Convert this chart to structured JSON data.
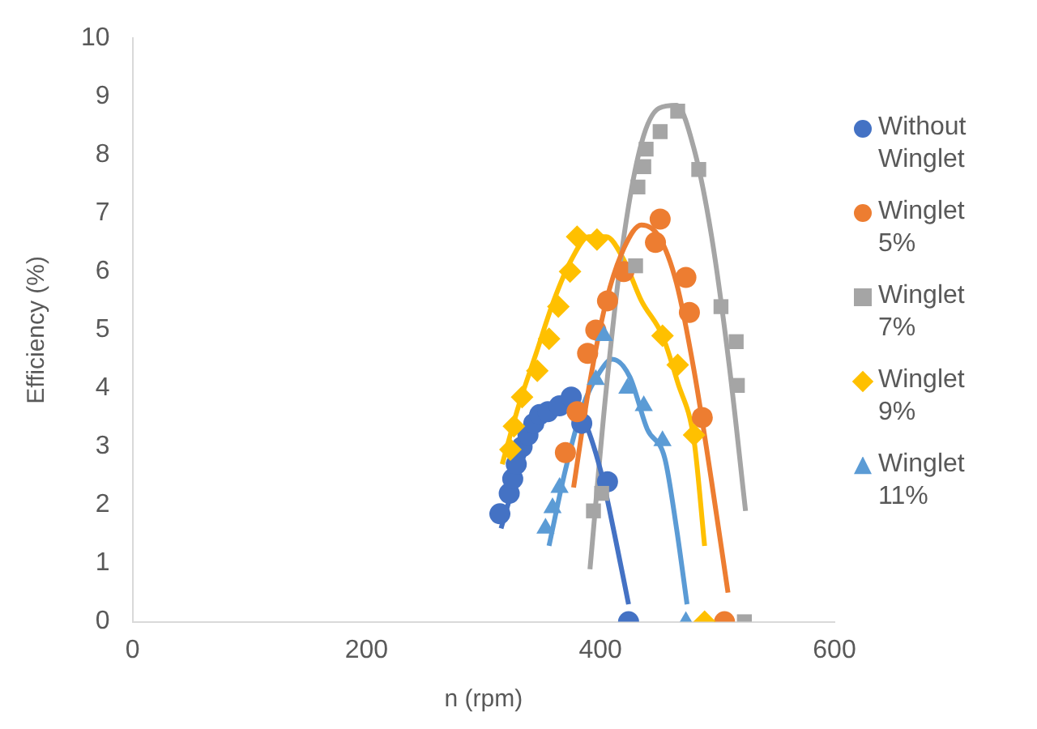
{
  "chart_data": {
    "type": "scatter",
    "xlabel": "n (rpm)",
    "ylabel": "Efficiency (%)",
    "xlim": [
      0,
      600
    ],
    "xticks": [
      0,
      200,
      400,
      600
    ],
    "ylim": [
      0,
      10
    ],
    "yticks": [
      0,
      1,
      2,
      3,
      4,
      5,
      6,
      7,
      8,
      9,
      10
    ],
    "grid": false,
    "legend": "right",
    "series": [
      {
        "name": "Without Winglet",
        "color": "#4472c4",
        "marker": "circle",
        "x": [
          314,
          322,
          325,
          328,
          333,
          338,
          343,
          348,
          355,
          365,
          375,
          384,
          406,
          424
        ],
        "values": [
          1.85,
          2.2,
          2.45,
          2.7,
          3.0,
          3.2,
          3.4,
          3.55,
          3.6,
          3.7,
          3.85,
          3.4,
          2.4,
          0
        ]
      },
      {
        "name": "Winglet 5%",
        "color": "#ed7d31",
        "marker": "circle",
        "x": [
          370,
          380,
          389,
          396,
          406,
          420,
          447,
          451,
          473,
          476,
          487,
          506
        ],
        "values": [
          2.9,
          3.6,
          4.6,
          5.0,
          5.5,
          6.0,
          6.5,
          6.9,
          5.9,
          5.3,
          3.5,
          0
        ]
      },
      {
        "name": "Winglet 7%",
        "color": "#a5a5a5",
        "marker": "square",
        "x": [
          394,
          401,
          430,
          432,
          437,
          439,
          451,
          466,
          484,
          503,
          516,
          517,
          523
        ],
        "values": [
          1.9,
          2.2,
          6.1,
          7.45,
          7.8,
          8.1,
          8.4,
          8.75,
          7.75,
          5.4,
          4.8,
          4.05,
          0
        ]
      },
      {
        "name": "Winglet 9%",
        "color": "#ffc000",
        "marker": "diamond",
        "x": [
          323,
          326,
          333,
          346,
          356,
          364,
          374,
          380,
          397,
          453,
          466,
          480,
          489
        ],
        "values": [
          2.95,
          3.35,
          3.85,
          4.3,
          4.85,
          5.4,
          6.0,
          6.6,
          6.55,
          4.9,
          4.4,
          3.2,
          0
        ]
      },
      {
        "name": "Winglet 11%",
        "color": "#5b9bd5",
        "marker": "triangle",
        "x": [
          353,
          359,
          365,
          396,
          403,
          423,
          437,
          453,
          473
        ],
        "values": [
          1.6,
          1.95,
          2.3,
          4.15,
          4.9,
          4.0,
          3.7,
          3.1,
          0
        ]
      },
      {
        "type": "line",
        "color": "#4472c4",
        "marker": "none",
        "x": [
          315,
          330,
          345,
          360,
          372,
          385,
          400,
          412,
          424
        ],
        "values": [
          1.6,
          2.6,
          3.3,
          3.7,
          3.8,
          3.5,
          2.6,
          1.5,
          0.3
        ]
      },
      {
        "type": "line",
        "color": "#ed7d31",
        "marker": "none",
        "x": [
          377,
          390,
          405,
          420,
          435,
          450,
          465,
          480,
          495,
          509
        ],
        "values": [
          2.3,
          4.0,
          5.5,
          6.4,
          6.8,
          6.6,
          5.8,
          4.3,
          2.4,
          0.5
        ]
      },
      {
        "type": "line",
        "color": "#a5a5a5",
        "marker": "none",
        "x": [
          391,
          405,
          420,
          435,
          450,
          465,
          480,
          495,
          510,
          524
        ],
        "values": [
          0.9,
          4.0,
          6.6,
          8.2,
          8.8,
          8.85,
          8.1,
          6.6,
          4.4,
          1.9
        ]
      },
      {
        "type": "line",
        "color": "#ffc000",
        "marker": "none",
        "x": [
          316,
          330,
          345,
          360,
          375,
          390,
          405,
          420,
          435,
          453,
          466,
          480,
          489
        ],
        "values": [
          2.7,
          3.7,
          4.6,
          5.5,
          6.2,
          6.6,
          6.6,
          6.2,
          5.5,
          4.9,
          4.1,
          3.1,
          1.3
        ]
      },
      {
        "type": "line",
        "color": "#5b9bd5",
        "marker": "none",
        "x": [
          356,
          370,
          385,
          400,
          410,
          425,
          440,
          455,
          465,
          474
        ],
        "values": [
          1.3,
          2.6,
          3.7,
          4.3,
          4.5,
          4.2,
          3.3,
          2.8,
          1.6,
          0.3
        ]
      }
    ]
  }
}
